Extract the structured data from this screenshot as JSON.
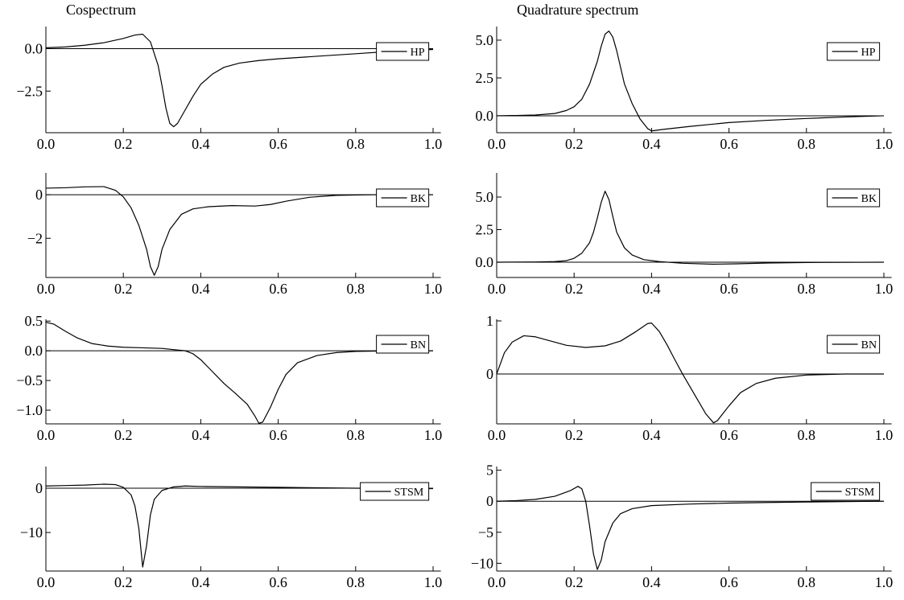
{
  "chart_data": [
    {
      "type": "line",
      "title": "Cospectrum",
      "legend": "upper right",
      "x": [
        0,
        0.05,
        0.1,
        0.15,
        0.2,
        0.23,
        0.25,
        0.27,
        0.29,
        0.3,
        0.31,
        0.32,
        0.33,
        0.34,
        0.36,
        0.38,
        0.4,
        0.43,
        0.46,
        0.5,
        0.55,
        0.6,
        0.7,
        0.8,
        0.9,
        1.0
      ],
      "series": [
        {
          "name": "HP",
          "color": "#000000",
          "values": [
            0.05,
            0.1,
            0.2,
            0.35,
            0.6,
            0.8,
            0.85,
            0.4,
            -1.0,
            -2.2,
            -3.5,
            -4.4,
            -4.6,
            -4.4,
            -3.6,
            -2.8,
            -2.1,
            -1.5,
            -1.1,
            -0.85,
            -0.7,
            -0.6,
            -0.45,
            -0.3,
            -0.15,
            -0.05
          ]
        }
      ],
      "xlim": [
        0,
        1.02
      ],
      "ylim": [
        -4.95,
        1.3
      ],
      "xticks": [
        {
          "value": 0,
          "label": "0.0"
        },
        0.2,
        0.4,
        0.6,
        0.8,
        {
          "value": 1,
          "label": "1.0"
        }
      ],
      "yticks": [
        {
          "value": 0,
          "label": "0.0"
        },
        {
          "value": -2.5,
          "label": "−2.5"
        }
      ]
    },
    {
      "type": "line",
      "title": "Quadrature spectrum",
      "legend": "upper right",
      "x": [
        0,
        0.05,
        0.1,
        0.15,
        0.18,
        0.2,
        0.22,
        0.24,
        0.26,
        0.27,
        0.28,
        0.29,
        0.3,
        0.31,
        0.32,
        0.33,
        0.35,
        0.37,
        0.39,
        0.4,
        0.43,
        0.5,
        0.6,
        0.7,
        0.8,
        0.9,
        1.0
      ],
      "series": [
        {
          "name": "HP",
          "color": "#000000",
          "values": [
            0,
            0.02,
            0.05,
            0.15,
            0.35,
            0.6,
            1.1,
            2.1,
            3.6,
            4.6,
            5.4,
            5.6,
            5.2,
            4.3,
            3.2,
            2.1,
            0.8,
            -0.2,
            -0.85,
            -1.0,
            -0.9,
            -0.7,
            -0.45,
            -0.3,
            -0.18,
            -0.08,
            0
          ]
        }
      ],
      "xlim": [
        0,
        1.02
      ],
      "ylim": [
        -1.12,
        5.9
      ],
      "xticks": [
        {
          "value": 0,
          "label": "0.0"
        },
        0.2,
        0.4,
        0.6,
        0.8,
        {
          "value": 1,
          "label": "1.0"
        }
      ],
      "yticks": [
        {
          "value": 5,
          "label": "5.0"
        },
        2.5,
        {
          "value": 0,
          "label": "0.0"
        }
      ]
    },
    {
      "type": "line",
      "legend": "upper right",
      "x": [
        0,
        0.05,
        0.1,
        0.15,
        0.18,
        0.2,
        0.22,
        0.24,
        0.26,
        0.27,
        0.28,
        0.29,
        0.3,
        0.32,
        0.35,
        0.38,
        0.42,
        0.48,
        0.54,
        0.58,
        0.62,
        0.68,
        0.75,
        0.85,
        1.0
      ],
      "series": [
        {
          "name": "BK",
          "color": "#000000",
          "values": [
            0.3,
            0.32,
            0.36,
            0.37,
            0.2,
            -0.1,
            -0.6,
            -1.4,
            -2.5,
            -3.3,
            -3.7,
            -3.3,
            -2.5,
            -1.6,
            -0.9,
            -0.65,
            -0.55,
            -0.5,
            -0.52,
            -0.45,
            -0.3,
            -0.12,
            -0.03,
            0,
            0
          ]
        }
      ],
      "xlim": [
        0,
        1.02
      ],
      "ylim": [
        -3.8,
        1.0
      ],
      "xticks": [
        {
          "value": 0,
          "label": "0.0"
        },
        0.2,
        0.4,
        0.6,
        0.8,
        {
          "value": 1,
          "label": "1.0"
        }
      ],
      "yticks": [
        0,
        {
          "value": -2,
          "label": "−2"
        }
      ]
    },
    {
      "type": "line",
      "legend": "upper right",
      "x": [
        0,
        0.1,
        0.15,
        0.18,
        0.2,
        0.22,
        0.24,
        0.25,
        0.26,
        0.27,
        0.28,
        0.29,
        0.3,
        0.31,
        0.33,
        0.35,
        0.38,
        0.42,
        0.48,
        0.56,
        0.62,
        0.7,
        0.8,
        1.0
      ],
      "series": [
        {
          "name": "BK",
          "color": "#000000",
          "values": [
            0,
            0.02,
            0.05,
            0.12,
            0.3,
            0.7,
            1.5,
            2.3,
            3.4,
            4.6,
            5.45,
            4.8,
            3.5,
            2.3,
            1.1,
            0.55,
            0.2,
            0.05,
            -0.08,
            -0.15,
            -0.12,
            -0.06,
            -0.02,
            0
          ]
        }
      ],
      "xlim": [
        0,
        1.02
      ],
      "ylim": [
        -1.17,
        6.85
      ],
      "xticks": [
        {
          "value": 0,
          "label": "0.0"
        },
        0.2,
        0.4,
        0.6,
        0.8,
        {
          "value": 1,
          "label": "1.0"
        }
      ],
      "yticks": [
        {
          "value": 5,
          "label": "5.0"
        },
        2.5,
        {
          "value": 0,
          "label": "0.0"
        }
      ]
    },
    {
      "type": "line",
      "legend": "upper right",
      "x": [
        0,
        0.02,
        0.05,
        0.08,
        0.12,
        0.16,
        0.2,
        0.25,
        0.3,
        0.33,
        0.36,
        0.38,
        0.4,
        0.43,
        0.46,
        0.49,
        0.52,
        0.54,
        0.55,
        0.56,
        0.58,
        0.6,
        0.62,
        0.65,
        0.7,
        0.75,
        0.8,
        0.9,
        1.0
      ],
      "series": [
        {
          "name": "BN",
          "color": "#000000",
          "values": [
            0.48,
            0.45,
            0.33,
            0.22,
            0.12,
            0.08,
            0.06,
            0.05,
            0.04,
            0.02,
            0,
            -0.05,
            -0.15,
            -0.35,
            -0.55,
            -0.72,
            -0.9,
            -1.1,
            -1.22,
            -1.2,
            -0.95,
            -0.65,
            -0.4,
            -0.2,
            -0.08,
            -0.03,
            -0.01,
            0,
            0
          ]
        }
      ],
      "xlim": [
        0,
        1.02
      ],
      "ylim": [
        -1.23,
        0.53
      ],
      "xticks": [
        {
          "value": 0,
          "label": "0.0"
        },
        0.2,
        0.4,
        0.6,
        0.8,
        {
          "value": 1,
          "label": "1.0"
        }
      ],
      "yticks": [
        0.5,
        {
          "value": 0,
          "label": "0.0"
        },
        {
          "value": -0.5,
          "label": "−0.5"
        },
        {
          "value": -1,
          "label": "−1.0"
        }
      ]
    },
    {
      "type": "line",
      "legend": "upper right",
      "x": [
        0,
        0.02,
        0.04,
        0.07,
        0.1,
        0.14,
        0.18,
        0.23,
        0.28,
        0.32,
        0.36,
        0.39,
        0.4,
        0.42,
        0.44,
        0.46,
        0.48,
        0.5,
        0.52,
        0.54,
        0.56,
        0.57,
        0.6,
        0.63,
        0.67,
        0.72,
        0.8,
        0.9,
        1.0
      ],
      "series": [
        {
          "name": "BN",
          "color": "#000000",
          "values": [
            0,
            0.4,
            0.6,
            0.72,
            0.7,
            0.62,
            0.54,
            0.5,
            0.53,
            0.62,
            0.8,
            0.95,
            0.96,
            0.8,
            0.55,
            0.27,
            0,
            -0.25,
            -0.5,
            -0.75,
            -0.92,
            -0.88,
            -0.6,
            -0.35,
            -0.18,
            -0.08,
            -0.02,
            0,
            0
          ]
        }
      ],
      "xlim": [
        0,
        1.02
      ],
      "ylim": [
        -0.94,
        1.03
      ],
      "xticks": [
        {
          "value": 0,
          "label": "0.0"
        },
        0.2,
        0.4,
        0.6,
        0.8,
        {
          "value": 1,
          "label": "1.0"
        }
      ],
      "yticks": [
        1,
        0
      ]
    },
    {
      "type": "line",
      "legend": "upper right",
      "x": [
        0,
        0.05,
        0.1,
        0.15,
        0.18,
        0.2,
        0.22,
        0.23,
        0.24,
        0.25,
        0.26,
        0.27,
        0.28,
        0.3,
        0.33,
        0.36,
        0.4,
        0.5,
        0.6,
        0.7,
        0.8,
        1.0
      ],
      "series": [
        {
          "name": "STSM",
          "color": "#000000",
          "values": [
            0.5,
            0.6,
            0.7,
            0.9,
            0.8,
            0.2,
            -1.5,
            -4,
            -9,
            -17.8,
            -13,
            -6,
            -2.5,
            -0.5,
            0.3,
            0.5,
            0.4,
            0.3,
            0.2,
            0.1,
            0,
            -0.1
          ]
        }
      ],
      "xlim": [
        0,
        1.02
      ],
      "ylim": [
        -18.7,
        4.9
      ],
      "xticks": [
        {
          "value": 0,
          "label": "0.0"
        },
        0.2,
        0.4,
        0.6,
        0.8,
        {
          "value": 1,
          "label": "1.0"
        }
      ],
      "yticks": [
        0,
        {
          "value": -10,
          "label": "−10"
        }
      ]
    },
    {
      "type": "line",
      "legend": "upper right",
      "x": [
        0,
        0.05,
        0.1,
        0.15,
        0.19,
        0.21,
        0.22,
        0.23,
        0.24,
        0.25,
        0.26,
        0.27,
        0.28,
        0.3,
        0.32,
        0.35,
        0.4,
        0.5,
        0.6,
        0.7,
        0.8,
        0.9,
        1.0
      ],
      "series": [
        {
          "name": "STSM",
          "color": "#000000",
          "values": [
            0,
            0.1,
            0.3,
            0.8,
            1.7,
            2.4,
            2.0,
            0,
            -4,
            -8.5,
            -11,
            -9.5,
            -6.5,
            -3.5,
            -2.0,
            -1.2,
            -0.7,
            -0.45,
            -0.3,
            -0.2,
            -0.12,
            -0.06,
            0
          ]
        }
      ],
      "xlim": [
        0,
        1.02
      ],
      "ylim": [
        -11.25,
        5.6
      ],
      "xticks": [
        {
          "value": 0,
          "label": "0.0"
        },
        0.2,
        0.4,
        0.6,
        0.8,
        {
          "value": 1,
          "label": "1.0"
        }
      ],
      "yticks": [
        5,
        0,
        {
          "value": -5,
          "label": "−5"
        },
        {
          "value": -10,
          "label": "−10"
        }
      ]
    }
  ]
}
